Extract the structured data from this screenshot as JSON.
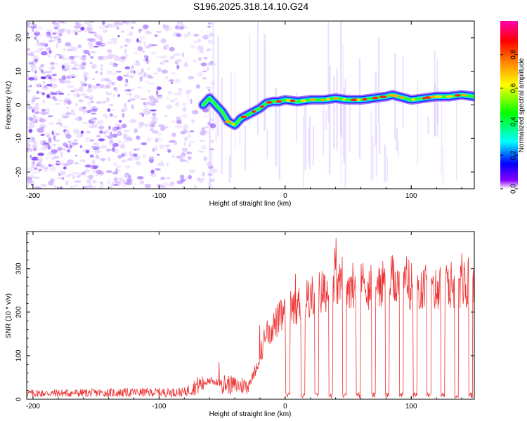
{
  "title": "S196.2025.318.14.10.G24",
  "chart_data": [
    {
      "type": "heatmap",
      "name": "spectrogram",
      "xlabel": "Height of straight line (km)",
      "ylabel": "Frequency (Hz)",
      "xlim": [
        -205,
        150
      ],
      "ylim": [
        -25,
        25
      ],
      "xticks": [
        -200,
        -100,
        0,
        100
      ],
      "yticks": [
        20,
        10,
        0,
        -10,
        -20
      ],
      "colorbar": {
        "label": "Normalized spectral amplitude",
        "range": [
          0,
          1
        ],
        "ticks": [
          0.0,
          0.2,
          0.4,
          0.6,
          0.8
        ],
        "colors": [
          "#ffffff",
          "#8800ff",
          "#0000ff",
          "#00ffff",
          "#00ff00",
          "#ffff00",
          "#ff8800",
          "#ff0000",
          "#ff00aa"
        ]
      },
      "ridge": {
        "x": [
          -65,
          -60,
          -55,
          -50,
          -45,
          -40,
          -35,
          -30,
          -25,
          -20,
          -15,
          -10,
          -5,
          0,
          10,
          20,
          30,
          40,
          50,
          60,
          70,
          80,
          85,
          90,
          100,
          110,
          120,
          130,
          140,
          150
        ],
        "y": [
          0,
          2,
          0,
          -2,
          -5,
          -6,
          -4,
          -3,
          -2,
          -1,
          0.5,
          1,
          1,
          1.5,
          1,
          1.5,
          1.5,
          2,
          1.5,
          1.5,
          2,
          2.5,
          3,
          2.5,
          1.5,
          2,
          2.5,
          2.5,
          3,
          2.5
        ]
      }
    },
    {
      "type": "line",
      "name": "snr",
      "xlabel": "Height of straight line (km)",
      "ylabel": "SNR (10 * v/v)",
      "xlim": [
        -205,
        150
      ],
      "ylim": [
        0,
        385
      ],
      "xticks": [
        -200,
        -100,
        0,
        100
      ],
      "yticks": [
        0,
        100,
        200,
        300
      ],
      "color": "#ee3333",
      "envelope": {
        "x": [
          -205,
          -80,
          -70,
          -60,
          -50,
          -40,
          -30,
          -25,
          -20,
          -15,
          -10,
          -5,
          0,
          10,
          20,
          30,
          40,
          50,
          60,
          70,
          80,
          90,
          100,
          110,
          120,
          130,
          150
        ],
        "y": [
          15,
          18,
          35,
          45,
          40,
          35,
          35,
          60,
          110,
          160,
          180,
          200,
          215,
          235,
          255,
          270,
          285,
          290,
          285,
          280,
          290,
          300,
          285,
          280,
          275,
          285,
          290
        ]
      },
      "dropout_positions": [
        2,
        14,
        25,
        36,
        47,
        58,
        70,
        81,
        92,
        103,
        114,
        125,
        136,
        147
      ]
    }
  ]
}
